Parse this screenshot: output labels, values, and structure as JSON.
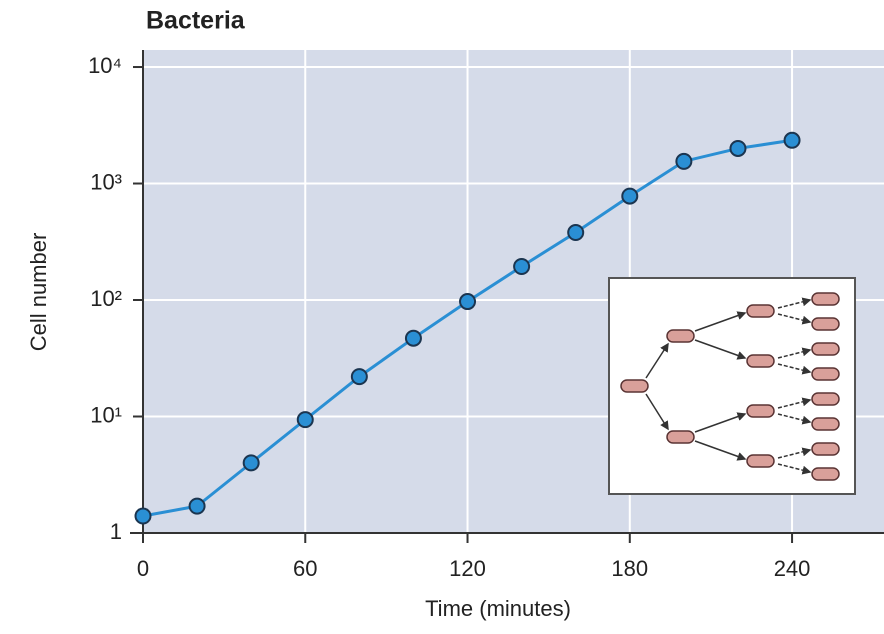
{
  "chart_data": {
    "type": "line",
    "title": "Bacteria",
    "x_label": "Time (minutes)",
    "y_label": "Cell number",
    "x": [
      0,
      20,
      40,
      60,
      80,
      100,
      120,
      140,
      160,
      180,
      200,
      220,
      240
    ],
    "series": [
      {
        "color": "#2a8fd4",
        "values": [
          1.4,
          1.7,
          4,
          9.4,
          22,
          47,
          97,
          194,
          380,
          780,
          1550,
          2000,
          2350
        ]
      }
    ],
    "xlim": [
      0,
      274
    ],
    "xticks": [
      0,
      60,
      120,
      180,
      240
    ],
    "ylim": [
      1,
      14000
    ],
    "log_y": true,
    "yticks": [
      {
        "value": 1,
        "label": "1"
      },
      {
        "value": 10,
        "label": "10¹"
      },
      {
        "value": 100,
        "label": "10²"
      },
      {
        "value": 1000,
        "label": "10³"
      },
      {
        "value": 10000,
        "label": "10⁴"
      }
    ],
    "grid": true
  }
}
